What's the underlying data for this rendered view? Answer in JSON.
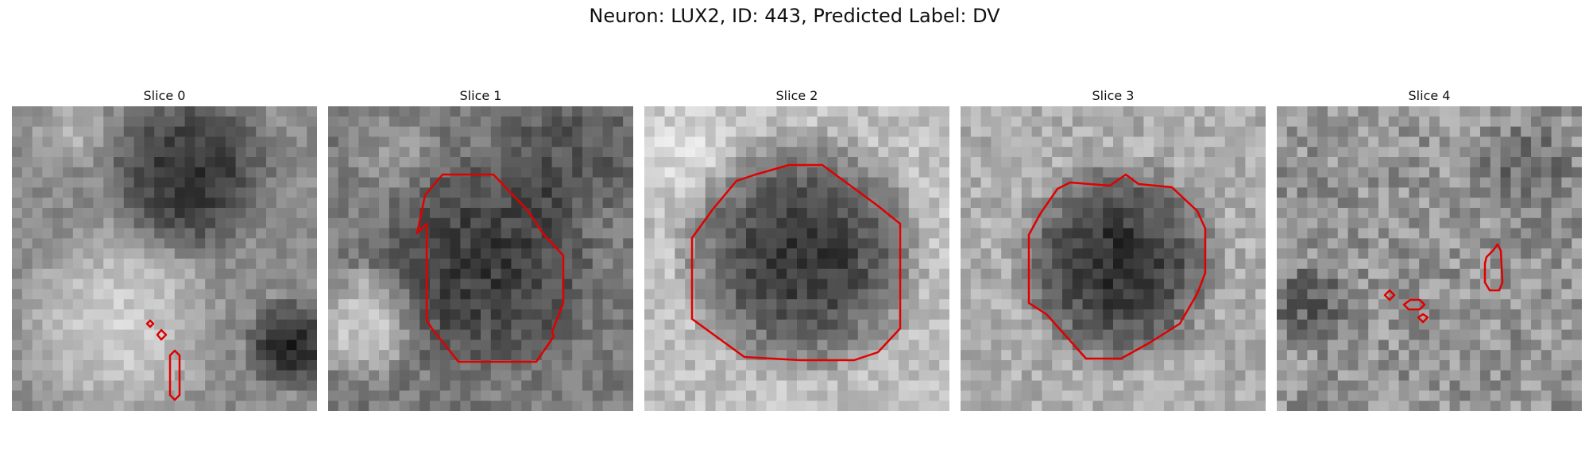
{
  "figure": {
    "title": "Neuron: LUX2, ID: 443, Predicted Label: DV",
    "contour_color": "#e00000",
    "grid_size": 30
  },
  "panels": [
    {
      "label": "Slice 0",
      "kind": "slice0"
    },
    {
      "label": "Slice 1",
      "kind": "slice1"
    },
    {
      "label": "Slice 2",
      "kind": "slice2"
    },
    {
      "label": "Slice 3",
      "kind": "slice3"
    },
    {
      "label": "Slice 4",
      "kind": "slice4"
    }
  ]
}
